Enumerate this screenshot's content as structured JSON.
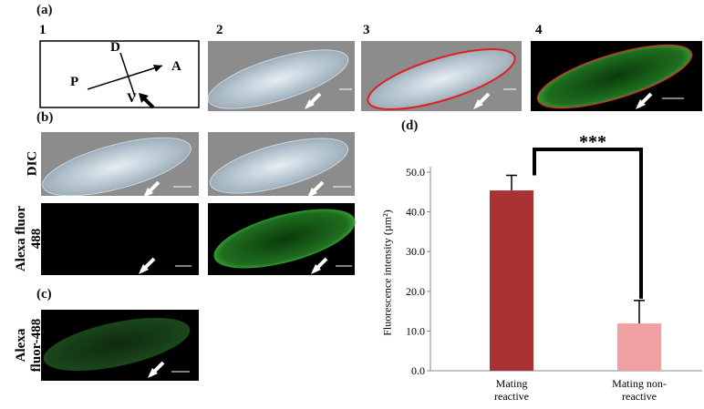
{
  "figure": {
    "panel_labels": {
      "a": "(a)",
      "b": "(b)",
      "c": "(c)",
      "d": "(d)"
    },
    "column_numbers": [
      "1",
      "2",
      "3",
      "4"
    ],
    "orientation": {
      "dorsal": "D",
      "posterior": "P",
      "anterior": "A",
      "ventral": "V"
    },
    "row_labels": {
      "dic": "DIC",
      "alexa_b": "Alexa fluor 488",
      "alexa_c": "Alexa fluor-488"
    }
  },
  "chart_data": {
    "type": "bar",
    "y_label": "Fluorescence intensity (µm²)",
    "annotation": "***",
    "categories": [
      "Mating reactive",
      "Mating non-reactive"
    ],
    "values": [
      45.4,
      11.9
    ],
    "errors": [
      3.8,
      5.8
    ],
    "colors": [
      "#a93232",
      "#f0a0a0"
    ],
    "ylim": [
      0,
      50
    ],
    "yticks": [
      {
        "value": 0,
        "label": "0.0"
      },
      {
        "value": 10,
        "label": "10.0"
      },
      {
        "value": 20,
        "label": "20.0"
      },
      {
        "value": 30,
        "label": "30.0"
      },
      {
        "value": 40,
        "label": "40.0"
      },
      {
        "value": 50,
        "label": "50.0"
      }
    ]
  }
}
